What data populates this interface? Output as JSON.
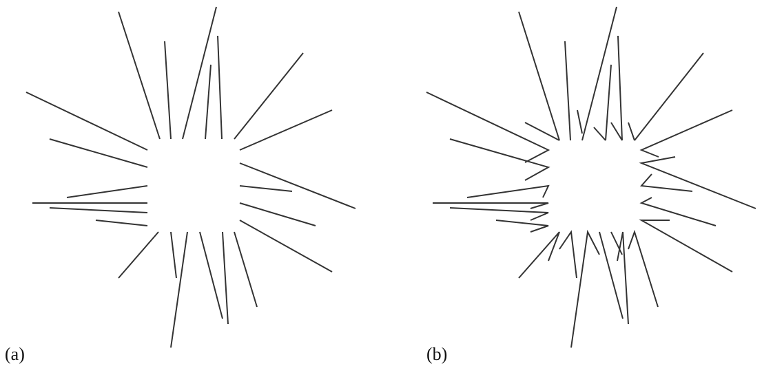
{
  "panels": [
    {
      "id": "a",
      "label": "(a)"
    },
    {
      "id": "b",
      "label": "(b)"
    }
  ],
  "style": {
    "stroke_color": "#333333",
    "background": "#ffffff"
  }
}
